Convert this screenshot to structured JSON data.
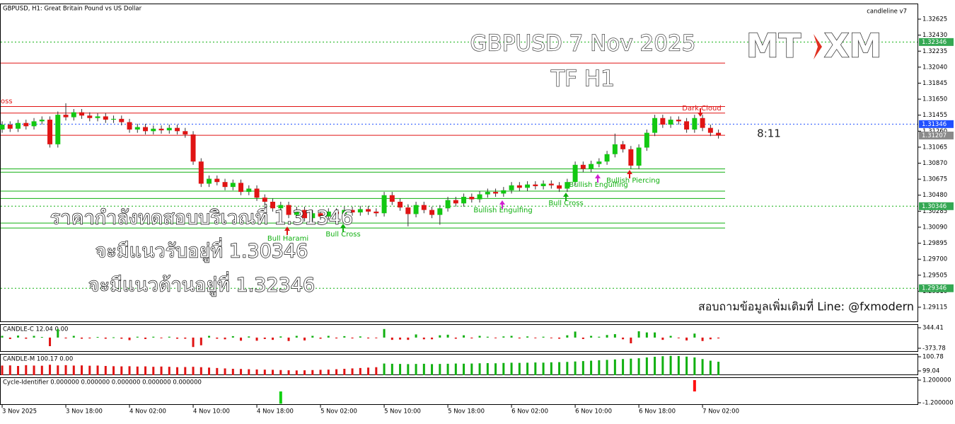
{
  "header": {
    "symbol_label": "GBPUSD, H1:  Great Britain Pound vs US Dollar",
    "indicator_name": "candleline v7"
  },
  "overlay": {
    "title": "GBPUSD 7 Nov 2025",
    "subtitle": "TF H1",
    "notes": [
      "ราคากำลังทดสอบบริเวณที่ 1.31346",
      "จะมีแนวรับอยู่ที่ 1.30346",
      "จะมีแนวต้านอยู่ที่ 1.32346"
    ],
    "contact": "สอบถามข้อมูลเพิ่มเติมที่ Line: @fxmodern",
    "timer": "8:11",
    "logo_left": "MT",
    "logo_right": "XM"
  },
  "chart_data": [
    {
      "type": "candlestick",
      "up_color": "#12c812",
      "down_color": "#e01414",
      "wick_color": "#333333",
      "xlim": [
        -0.27,
        115.1
      ],
      "ylim": [
        1.28934,
        1.32815
      ],
      "xticks": [
        {
          "value": 0,
          "label": "3 Nov 2025"
        },
        {
          "value": 8,
          "label": "3 Nov 18:00"
        },
        {
          "value": 16,
          "label": "4 Nov 02:00"
        },
        {
          "value": 24,
          "label": "4 Nov 10:00"
        },
        {
          "value": 32,
          "label": "4 Nov 18:00"
        },
        {
          "value": 40,
          "label": "5 Nov 02:00"
        },
        {
          "value": 48,
          "label": "5 Nov 10:00"
        },
        {
          "value": 56,
          "label": "5 Nov 18:00"
        },
        {
          "value": 64,
          "label": "6 Nov 02:00"
        },
        {
          "value": 72,
          "label": "6 Nov 10:00"
        },
        {
          "value": 80,
          "label": "6 Nov 18:00"
        },
        {
          "value": 88,
          "label": "7 Nov 02:00"
        }
      ],
      "yticks": [
        1.32625,
        {
          "value": 1.3243,
          "label": "1.32430"
        },
        1.32235,
        {
          "value": 1.3204,
          "label": "1.32040"
        },
        1.31845,
        {
          "value": 1.3165,
          "label": "1.31650"
        },
        1.31455,
        {
          "value": 1.3126,
          "label": "1.31260"
        },
        1.31065,
        {
          "value": 1.3087,
          "label": "1.30870"
        },
        1.30675,
        {
          "value": 1.3048,
          "label": "1.30480"
        },
        1.30285,
        {
          "value": 1.3009,
          "label": "1.30090"
        },
        1.29895,
        {
          "value": 1.297,
          "label": "1.29700"
        },
        1.29505,
        {
          "value": 1.2931,
          "label": "1.29310"
        },
        1.29115
      ],
      "open": [
        1.3128,
        1.3134,
        1.3129,
        1.3136,
        1.3132,
        1.3138,
        1.314,
        1.311,
        1.3146,
        1.3143,
        1.3149,
        1.3145,
        1.3142,
        1.3144,
        1.314,
        1.3141,
        1.3137,
        1.3128,
        1.3131,
        1.3126,
        1.3129,
        1.3127,
        1.313,
        1.3126,
        1.3122,
        1.3089,
        1.3062,
        1.3068,
        1.3064,
        1.3058,
        1.3063,
        1.3052,
        1.3056,
        1.3045,
        1.304,
        1.3032,
        1.3036,
        1.3024,
        1.303,
        1.302,
        1.3026,
        1.3022,
        1.3028,
        1.3025,
        1.303,
        1.3027,
        1.3031,
        1.3028,
        1.3026,
        1.3048,
        1.304,
        1.3033,
        1.3025,
        1.3036,
        1.303,
        1.3024,
        1.3032,
        1.3042,
        1.3038,
        1.3046,
        1.3043,
        1.3049,
        1.3052,
        1.305,
        1.3054,
        1.306,
        1.3057,
        1.3061,
        1.3059,
        1.3062,
        1.306,
        1.3056,
        1.3064,
        1.3085,
        1.308,
        1.3086,
        1.3089,
        1.3098,
        1.311,
        1.3104,
        1.3084,
        1.3106,
        1.3124,
        1.3142,
        1.3134,
        1.314,
        1.3138,
        1.3128,
        1.3142,
        1.313,
        1.3124
      ],
      "high": [
        1.3138,
        1.3138,
        1.314,
        1.314,
        1.3142,
        1.3144,
        1.3144,
        1.315,
        1.316,
        1.3153,
        1.3153,
        1.3149,
        1.3148,
        1.3148,
        1.3145,
        1.3145,
        1.3141,
        1.3135,
        1.3135,
        1.3133,
        1.3133,
        1.3134,
        1.3134,
        1.313,
        1.3126,
        1.3093,
        1.3072,
        1.3072,
        1.3068,
        1.3067,
        1.3067,
        1.306,
        1.306,
        1.3049,
        1.3044,
        1.304,
        1.304,
        1.3034,
        1.3034,
        1.303,
        1.303,
        1.3032,
        1.3032,
        1.3034,
        1.3034,
        1.3035,
        1.3035,
        1.3032,
        1.3052,
        1.3052,
        1.3044,
        1.3037,
        1.304,
        1.304,
        1.3034,
        1.3036,
        1.3046,
        1.3046,
        1.305,
        1.305,
        1.3053,
        1.3056,
        1.3056,
        1.3058,
        1.3064,
        1.3064,
        1.3065,
        1.3065,
        1.3066,
        1.3066,
        1.3064,
        1.3068,
        1.3089,
        1.3089,
        1.309,
        1.3093,
        1.3102,
        1.3123,
        1.3114,
        1.3108,
        1.311,
        1.3128,
        1.3146,
        1.3146,
        1.3144,
        1.3144,
        1.3142,
        1.3146,
        1.3146,
        1.3134,
        1.3128
      ],
      "low": [
        1.3124,
        1.3125,
        1.3125,
        1.3128,
        1.3128,
        1.3134,
        1.3106,
        1.3106,
        1.3139,
        1.3139,
        1.3141,
        1.3138,
        1.3138,
        1.3136,
        1.3136,
        1.3133,
        1.3124,
        1.3124,
        1.3122,
        1.3122,
        1.3123,
        1.3123,
        1.3122,
        1.3118,
        1.3085,
        1.3058,
        1.3058,
        1.306,
        1.3054,
        1.3054,
        1.3048,
        1.3048,
        1.3041,
        1.3036,
        1.3028,
        1.3028,
        1.302,
        1.302,
        1.3016,
        1.3016,
        1.3018,
        1.3018,
        1.3021,
        1.3021,
        1.3023,
        1.3023,
        1.3024,
        1.3022,
        1.3022,
        1.3036,
        1.3029,
        1.301,
        1.3021,
        1.3026,
        1.302,
        1.3012,
        1.3028,
        1.3034,
        1.3034,
        1.3039,
        1.3039,
        1.3045,
        1.3046,
        1.3046,
        1.305,
        1.3053,
        1.3053,
        1.3055,
        1.3055,
        1.3056,
        1.3052,
        1.3052,
        1.306,
        1.3076,
        1.3076,
        1.3082,
        1.3085,
        1.3094,
        1.31,
        1.308,
        1.308,
        1.3102,
        1.312,
        1.313,
        1.313,
        1.3134,
        1.3124,
        1.3124,
        1.3126,
        1.312,
        1.3117
      ],
      "close": [
        1.3134,
        1.3129,
        1.3136,
        1.3132,
        1.3138,
        1.314,
        1.311,
        1.3146,
        1.3143,
        1.3149,
        1.3145,
        1.3142,
        1.3144,
        1.314,
        1.3141,
        1.3137,
        1.3128,
        1.3131,
        1.3126,
        1.3129,
        1.3127,
        1.313,
        1.3126,
        1.3122,
        1.3089,
        1.3062,
        1.3068,
        1.3064,
        1.3058,
        1.3063,
        1.3052,
        1.3056,
        1.3045,
        1.304,
        1.3032,
        1.3036,
        1.3024,
        1.303,
        1.302,
        1.3026,
        1.3022,
        1.3028,
        1.3025,
        1.303,
        1.3027,
        1.3031,
        1.3028,
        1.3026,
        1.3048,
        1.304,
        1.3033,
        1.3025,
        1.3036,
        1.303,
        1.3024,
        1.3032,
        1.3042,
        1.3038,
        1.3046,
        1.3043,
        1.3049,
        1.3052,
        1.305,
        1.3054,
        1.306,
        1.3057,
        1.3061,
        1.3059,
        1.3062,
        1.306,
        1.3056,
        1.3064,
        1.3085,
        1.308,
        1.3086,
        1.3089,
        1.3098,
        1.311,
        1.3104,
        1.3084,
        1.3106,
        1.3124,
        1.3142,
        1.3134,
        1.314,
        1.3138,
        1.3128,
        1.3142,
        1.313,
        1.3124,
        1.3121
      ],
      "levels": [
        {
          "value": 1.3209,
          "color": "#e01414",
          "style": "solid"
        },
        {
          "value": 1.3156,
          "color": "#e01414",
          "style": "solid"
        },
        {
          "value": 1.3148,
          "color": "#e01414",
          "style": "solid"
        },
        {
          "value": 1.3121,
          "color": "#e01414",
          "style": "solid"
        },
        {
          "value": 1.308,
          "color": "#10b010",
          "style": "solid"
        },
        {
          "value": 1.3076,
          "color": "#10b010",
          "style": "solid"
        },
        {
          "value": 1.3053,
          "color": "#10b010",
          "style": "solid"
        },
        {
          "value": 1.3044,
          "color": "#10b010",
          "style": "solid"
        },
        {
          "value": 1.3014,
          "color": "#10b010",
          "style": "solid"
        },
        {
          "value": 1.3008,
          "color": "#10b010",
          "style": "solid"
        },
        {
          "value": 1.32346,
          "color": "#10b010",
          "style": "dotted"
        },
        {
          "value": 1.31346,
          "color": "#2050ff",
          "style": "dotted"
        },
        {
          "value": 1.30346,
          "color": "#10b010",
          "style": "dotted"
        },
        {
          "value": 1.29346,
          "color": "#10b010",
          "style": "dotted"
        }
      ],
      "price_labels": [
        {
          "value": 1.32346,
          "color": "#34a853"
        },
        {
          "value": 1.31346,
          "color": "#2050ff"
        },
        {
          "value": 1.31207,
          "color": "#8a8a8a"
        },
        {
          "value": 1.30346,
          "color": "#34a853"
        },
        {
          "value": 1.29346,
          "color": "#34a853"
        }
      ],
      "annotations": [
        {
          "text": "oss",
          "color": "#e01414"
        },
        {
          "text": "Bull Harami",
          "color": "#10b010",
          "arrow_color": "#e01414",
          "arrow": "up"
        },
        {
          "text": "Bull Cross",
          "color": "#10b010",
          "arrow_color": "#10b010",
          "arrow": "up"
        },
        {
          "text": "Bullish Engulfing",
          "color": "#10b010",
          "arrow_color": "#d020d0",
          "arrow": "up"
        },
        {
          "text": "Bull Cross",
          "color": "#10b010",
          "arrow_color": "#10b010",
          "arrow": "up"
        },
        {
          "text": "Bullish Engulfing",
          "color": "#10b010",
          "arrow_color": "#d020d0",
          "arrow": "up"
        },
        {
          "text": "Bullish Piercing",
          "color": "#10b010",
          "arrow_color": "#e01414",
          "arrow": "up"
        },
        {
          "text": "Dark Cloud",
          "color": "#e01414",
          "arrow_color": "#e01414",
          "arrow": "down"
        }
      ]
    },
    {
      "type": "bar",
      "title": "CANDLE-C 12.04 0.00",
      "up_color": "#10b010",
      "down_color": "#e01414",
      "ylim": [
        -497.6,
        468.2
      ],
      "yticks": [
        344.41,
        -373.78
      ],
      "values": [
        60,
        -50,
        70,
        -40,
        60,
        20,
        -300,
        300,
        -30,
        60,
        -40,
        -30,
        20,
        -40,
        10,
        -40,
        -90,
        30,
        -50,
        30,
        -20,
        30,
        -40,
        -40,
        -330,
        -270,
        60,
        -40,
        -60,
        50,
        -110,
        40,
        -110,
        -50,
        -80,
        40,
        -120,
        60,
        -100,
        60,
        -40,
        60,
        -30,
        50,
        -30,
        40,
        -30,
        -20,
        300,
        -80,
        -70,
        -80,
        110,
        -60,
        -60,
        80,
        100,
        -40,
        80,
        -30,
        60,
        30,
        -20,
        40,
        60,
        -30,
        40,
        -20,
        30,
        -20,
        -40,
        80,
        210,
        -50,
        60,
        30,
        90,
        120,
        -60,
        -200,
        220,
        180,
        180,
        -80,
        60,
        -20,
        -100,
        140,
        -120,
        -60,
        -30
      ]
    },
    {
      "type": "bar",
      "title": "CANDLE-M 100.17 0.00",
      "ylim": [
        98.52,
        101.13
      ],
      "yticks": [
        100.78,
        99.04
      ],
      "series": [
        {
          "color": "#e01414",
          "values": [
            99.7,
            99.72,
            99.65,
            99.75,
            99.7,
            99.68,
            99.8,
            99.72,
            99.75,
            99.7,
            99.72,
            99.68,
            99.7,
            99.65,
            99.62,
            99.6,
            99.62,
            99.58,
            99.6,
            99.55,
            99.58,
            99.55,
            99.5,
            99.52,
            99.55,
            99.5,
            99.45,
            99.4,
            99.35,
            99.3,
            99.28,
            99.25,
            99.22,
            99.2,
            99.18,
            99.15,
            99.12,
            99.1,
            99.12,
            99.15,
            99.18,
            99.2,
            99.25,
            99.3,
            99.35,
            99.4,
            99.45,
            99.5,
            null,
            null,
            null,
            null,
            null,
            null,
            null,
            null,
            null,
            null,
            null,
            null,
            null,
            null,
            null,
            null,
            null,
            null,
            null,
            null,
            null,
            null,
            null,
            null,
            null,
            null,
            null,
            null,
            null,
            null,
            null,
            null,
            null,
            null,
            null,
            null,
            null,
            null,
            null,
            null,
            null,
            null,
            null
          ]
        },
        {
          "color": "#10b010",
          "values": [
            null,
            null,
            null,
            null,
            null,
            null,
            null,
            null,
            null,
            null,
            null,
            null,
            null,
            null,
            null,
            null,
            null,
            null,
            null,
            null,
            null,
            null,
            null,
            null,
            null,
            null,
            null,
            null,
            null,
            null,
            null,
            null,
            null,
            null,
            null,
            null,
            null,
            null,
            null,
            null,
            null,
            null,
            null,
            null,
            null,
            null,
            null,
            null,
            99.95,
            99.92,
            99.9,
            99.88,
            99.9,
            99.92,
            99.88,
            99.9,
            99.92,
            99.95,
            99.93,
            99.95,
            99.98,
            100.0,
            99.98,
            100.02,
            100.05,
            100.03,
            100.05,
            100.08,
            100.06,
            100.1,
            100.12,
            100.15,
            100.2,
            100.25,
            100.3,
            100.35,
            100.4,
            100.45,
            100.5,
            100.55,
            100.6,
            100.7,
            100.78,
            100.85,
            100.9,
            100.88,
            100.8,
            100.7,
            100.5,
            100.3,
            100.17
          ]
        }
      ]
    },
    {
      "type": "bar",
      "title": "Cycle-Identifier 0.000000 0.000000 0.000000 0.000000 0.000000",
      "ylim": [
        -1.425,
        1.5
      ],
      "yticks": [
        {
          "value": 1.2,
          "label": "1.200000"
        },
        {
          "value": -1.2,
          "label": "-1.200000"
        }
      ],
      "x": [
        35,
        87
      ],
      "values": [
        -1.3,
        1.2
      ],
      "colors": [
        "#10d010",
        "#ff1010"
      ]
    }
  ]
}
